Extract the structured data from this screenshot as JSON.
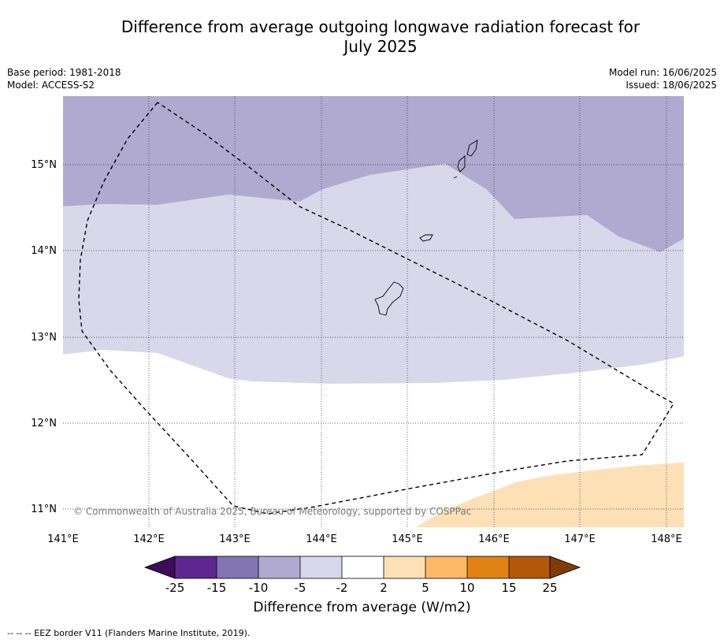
{
  "title_line1": "Difference from average outgoing longwave radiation forecast for",
  "title_line2": "July 2025",
  "meta": {
    "base_period": "Base period: 1981-2018",
    "model": "Model: ACCESS-S2",
    "model_run": "Model run: 16/06/2025",
    "issued": "Issued: 18/06/2025"
  },
  "map": {
    "lat_labels": [
      "15°N",
      "14°N",
      "13°N",
      "12°N",
      "11°N"
    ],
    "lon_labels": [
      "141°E",
      "142°E",
      "143°E",
      "144°E",
      "145°E",
      "146°E",
      "147°E",
      "148°E"
    ],
    "copyright": "© Commonwealth of Australia 2025, Bureau of Meteorology, supported by COSPPac",
    "fill_colors": {
      "minus10_to_minus5": "#b0a9d0",
      "minus5_to_minus2": "#d8d8ea",
      "minus2_to_2": "#ffffff",
      "2_to_5": "#fde0b6"
    }
  },
  "colorbar": {
    "ticks": [
      "-25",
      "-15",
      "-10",
      "-5",
      "-2",
      "2",
      "5",
      "10",
      "15",
      "25"
    ],
    "colors": [
      "#3d0d59",
      "#5d278f",
      "#8276b0",
      "#b0a9d0",
      "#d8d8ea",
      "#ffffff",
      "#fde0b6",
      "#fcb866",
      "#e08214",
      "#b35806",
      "#7f3b08"
    ],
    "label": "Difference from average (W/m2)"
  },
  "footer": "--  --  -- EEZ border V11 (Flanders Marine Institute, 2019)."
}
